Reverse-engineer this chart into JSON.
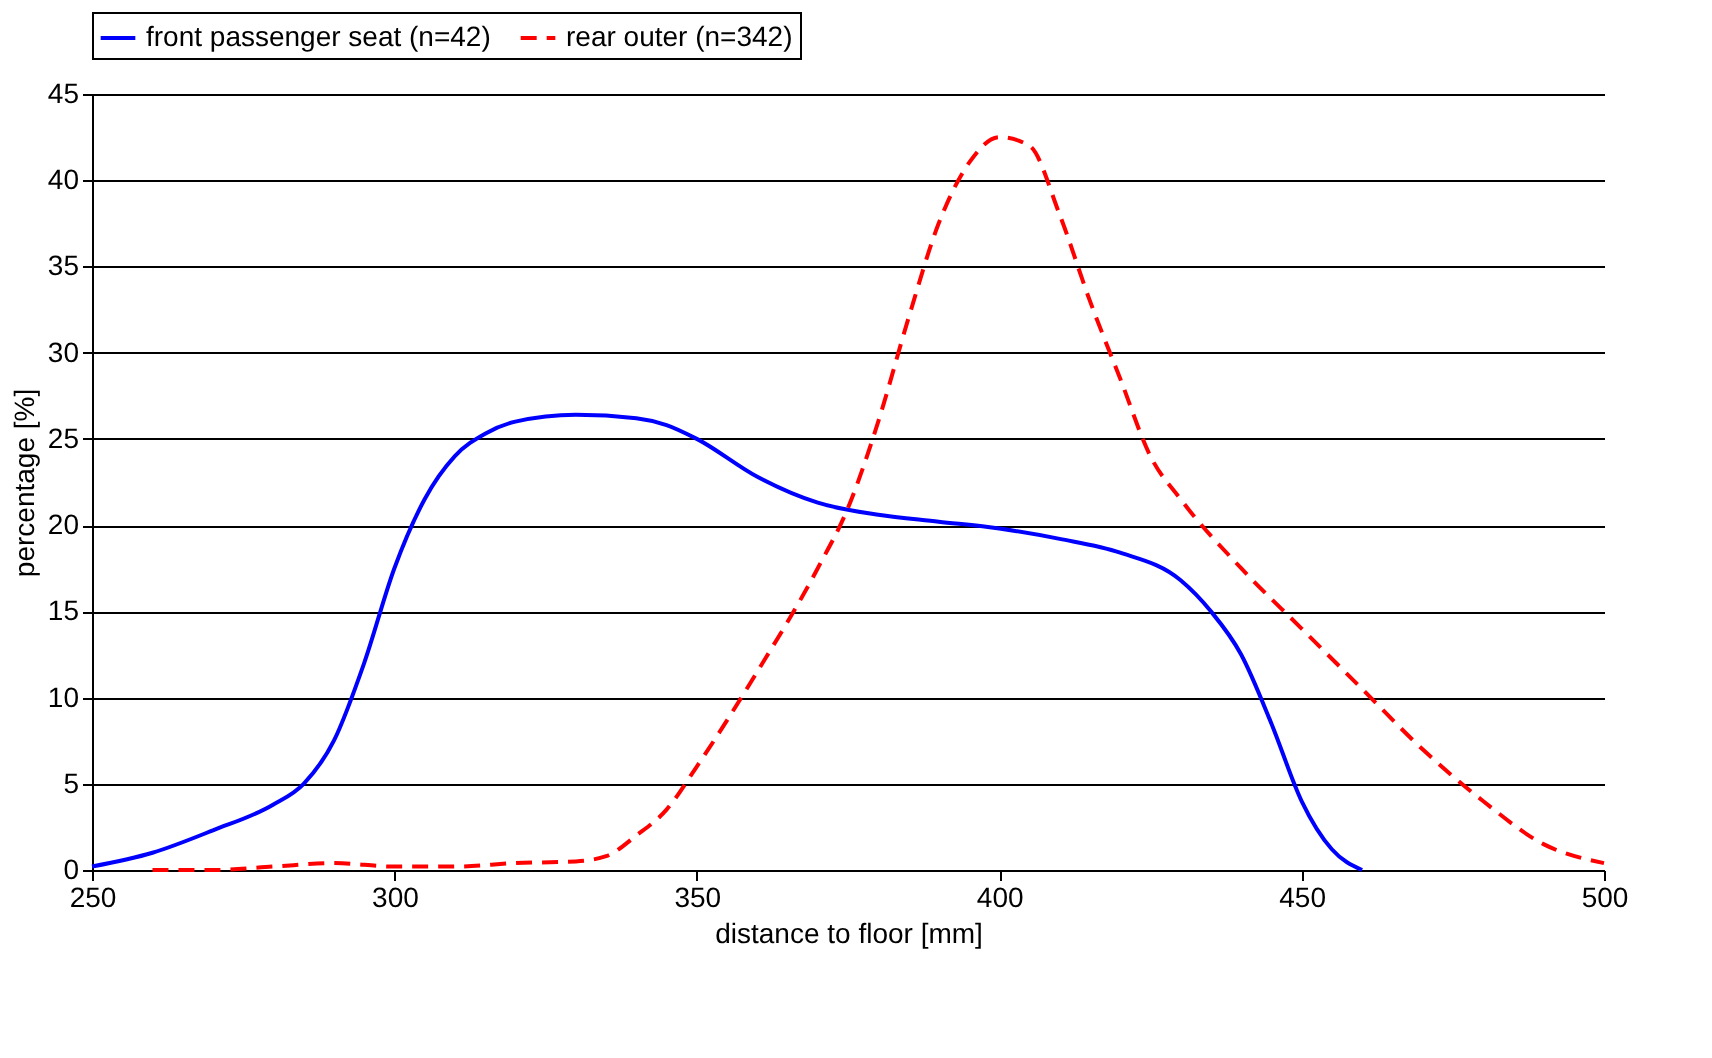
{
  "chart_data": {
    "type": "line",
    "xlabel": "distance to floor [mm]",
    "ylabel": "percentage [%]",
    "xlim": [
      250,
      500
    ],
    "xticks": [
      250,
      300,
      350,
      400,
      450,
      500
    ],
    "ylim": [
      0,
      45
    ],
    "yticks": [
      0,
      5,
      10,
      15,
      20,
      25,
      30,
      35,
      40,
      45
    ],
    "grid": "y",
    "legend": "top",
    "series": [
      {
        "name": "front passenger seat (n=42)",
        "color": "#0000ff",
        "line_style": "solid",
        "x": [
          250,
          260,
          270,
          280,
          285,
          290,
          295,
          300,
          305,
          310,
          315,
          320,
          330,
          340,
          345,
          350,
          360,
          370,
          380,
          390,
          400,
          410,
          420,
          430,
          435,
          440,
          445,
          450,
          455,
          460
        ],
        "values": [
          0.2,
          1,
          2.3,
          3.8,
          5,
          7.5,
          12,
          17.5,
          21.5,
          24,
          25.3,
          26,
          26.4,
          26.2,
          25.8,
          25,
          22.8,
          21.3,
          20.6,
          20.2,
          19.8,
          19.2,
          18.4,
          16.8,
          15,
          12.5,
          8.5,
          4,
          1.2,
          0
        ]
      },
      {
        "name": "rear outer (n=342)",
        "color": "#ff0000",
        "line_style": "dashed",
        "x": [
          260,
          270,
          280,
          290,
          300,
          310,
          320,
          330,
          335,
          340,
          345,
          350,
          360,
          370,
          375,
          380,
          385,
          390,
          395,
          400,
          405,
          410,
          415,
          420,
          425,
          430,
          440,
          450,
          460,
          470,
          480,
          490,
          500
        ],
        "values": [
          0,
          0,
          0.2,
          0.4,
          0.2,
          0.2,
          0.4,
          0.5,
          0.8,
          2,
          3.5,
          6,
          11.5,
          17.5,
          21,
          26,
          32,
          37.5,
          41,
          42.5,
          42,
          38,
          33,
          28.5,
          24,
          21.5,
          17.5,
          14,
          10.5,
          7,
          4,
          1.5,
          0.4
        ]
      }
    ]
  }
}
